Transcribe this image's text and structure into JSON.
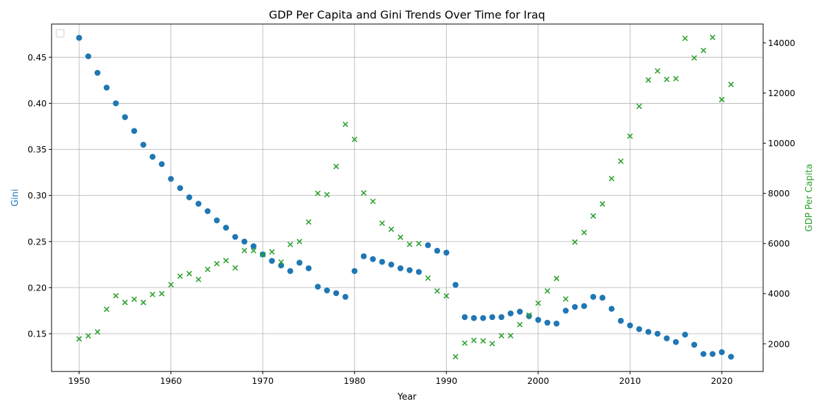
{
  "chart_data": {
    "type": "scatter",
    "title": "GDP Per Capita and Gini Trends Over Time for Iraq",
    "xlabel": "Year",
    "ylabel_left": "Gini",
    "ylabel_right": "GDP Per Capita",
    "xlim": [
      1947,
      2024.5
    ],
    "ylim_left": [
      0.109,
      0.486
    ],
    "ylim_right": [
      900,
      14750
    ],
    "x_ticks": [
      1950,
      1960,
      1970,
      1980,
      1990,
      2000,
      2010,
      2020
    ],
    "y_ticks_left": [
      0.15,
      0.2,
      0.25,
      0.3,
      0.35,
      0.4,
      0.45
    ],
    "y_ticks_right": [
      2000,
      4000,
      6000,
      8000,
      10000,
      12000,
      14000
    ],
    "grid": true,
    "legend": "top-left (empty)",
    "colors": {
      "gini": "#1f77b4",
      "gdp": "#2ca02c"
    },
    "years": [
      1950,
      1951,
      1952,
      1953,
      1954,
      1955,
      1956,
      1957,
      1958,
      1959,
      1960,
      1961,
      1962,
      1963,
      1964,
      1965,
      1966,
      1967,
      1968,
      1969,
      1970,
      1971,
      1972,
      1973,
      1974,
      1975,
      1976,
      1977,
      1978,
      1979,
      1980,
      1981,
      1982,
      1983,
      1984,
      1985,
      1986,
      1987,
      1988,
      1989,
      1990,
      1991,
      1992,
      1993,
      1994,
      1995,
      1996,
      1997,
      1998,
      1999,
      2000,
      2001,
      2002,
      2003,
      2004,
      2005,
      2006,
      2007,
      2008,
      2009,
      2010,
      2011,
      2012,
      2013,
      2014,
      2015,
      2016,
      2017,
      2018,
      2019,
      2020,
      2021
    ],
    "series": [
      {
        "key": "gini",
        "marker": "circle",
        "axis": "left",
        "values": [
          0.471,
          0.451,
          0.433,
          0.417,
          0.4,
          0.385,
          0.37,
          0.355,
          0.342,
          0.334,
          0.318,
          0.308,
          0.298,
          0.291,
          0.283,
          0.273,
          0.265,
          0.255,
          0.25,
          0.245,
          0.236,
          0.229,
          0.224,
          0.218,
          0.227,
          0.221,
          0.201,
          0.197,
          0.194,
          0.19,
          0.218,
          0.234,
          0.231,
          0.228,
          0.225,
          0.221,
          0.219,
          0.217,
          0.246,
          0.24,
          0.238,
          0.203,
          0.168,
          0.167,
          0.167,
          0.168,
          0.168,
          0.172,
          0.174,
          0.169,
          0.165,
          0.162,
          0.161,
          0.175,
          0.179,
          0.18,
          0.19,
          0.189,
          0.177,
          0.164,
          0.159,
          0.155,
          0.152,
          0.15,
          0.145,
          0.141,
          0.149,
          0.138,
          0.128,
          0.128,
          0.13,
          0.125
        ]
      },
      {
        "key": "gdp",
        "marker": "x",
        "axis": "right",
        "values": [
          2200,
          2320,
          2480,
          3380,
          3920,
          3650,
          3780,
          3650,
          3970,
          4000,
          4360,
          4700,
          4800,
          4570,
          4970,
          5200,
          5320,
          5030,
          5720,
          5720,
          5560,
          5670,
          5260,
          5960,
          6080,
          6860,
          8000,
          7950,
          9070,
          10750,
          10150,
          8020,
          7680,
          6810,
          6570,
          6250,
          5970,
          6000,
          4620,
          4110,
          3910,
          1490,
          2030,
          2140,
          2120,
          2010,
          2330,
          2330,
          2770,
          3150,
          3620,
          4110,
          4610,
          3790,
          6060,
          6440,
          7100,
          7580,
          8590,
          9280,
          10280,
          11470,
          12520,
          12880,
          12540,
          12570,
          14180,
          13400,
          13700,
          14220,
          11740,
          12340
        ]
      }
    ]
  }
}
